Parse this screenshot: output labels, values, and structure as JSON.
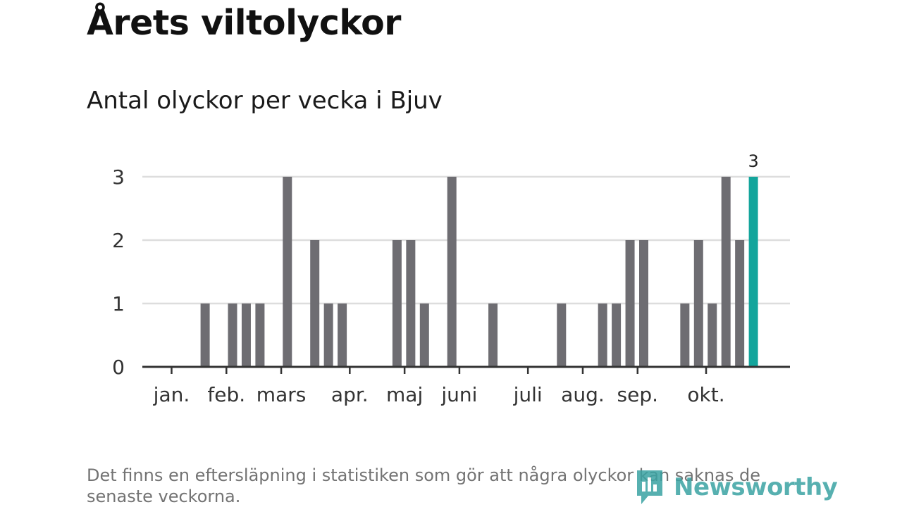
{
  "title": "Årets viltolyckor",
  "subtitle": "Antal olyckor per vecka i Bjuv",
  "footnote": "Det finns en eftersläpning i statistiken som gör att några olyckor kan saknas de senaste veckorna.",
  "brand": {
    "name": "Newsworthy",
    "color": "#3aa3a3"
  },
  "colors": {
    "bar": "#6e6d72",
    "highlight": "#13a59c",
    "grid": "#dddddd",
    "axis": "#333333"
  },
  "chart_data": {
    "type": "bar",
    "ylim": [
      0,
      3
    ],
    "yticks": [
      0,
      1,
      2,
      3
    ],
    "grid": true,
    "values": [
      0,
      0,
      0,
      0,
      1,
      0,
      1,
      1,
      1,
      0,
      3,
      0,
      2,
      1,
      1,
      0,
      0,
      0,
      2,
      2,
      1,
      0,
      3,
      0,
      0,
      1,
      0,
      0,
      0,
      0,
      1,
      0,
      0,
      1,
      1,
      2,
      2,
      0,
      0,
      1,
      2,
      1,
      3,
      2,
      3
    ],
    "highlight_index": 44,
    "highlight_label": "3",
    "month_labels": [
      {
        "label": "jan.",
        "week": 2
      },
      {
        "label": "feb.",
        "week": 6
      },
      {
        "label": "mars",
        "week": 10
      },
      {
        "label": "apr.",
        "week": 15
      },
      {
        "label": "maj",
        "week": 19
      },
      {
        "label": "juni",
        "week": 23
      },
      {
        "label": "juli",
        "week": 28
      },
      {
        "label": "aug.",
        "week": 32
      },
      {
        "label": "sep.",
        "week": 36
      },
      {
        "label": "okt.",
        "week": 41
      }
    ]
  }
}
